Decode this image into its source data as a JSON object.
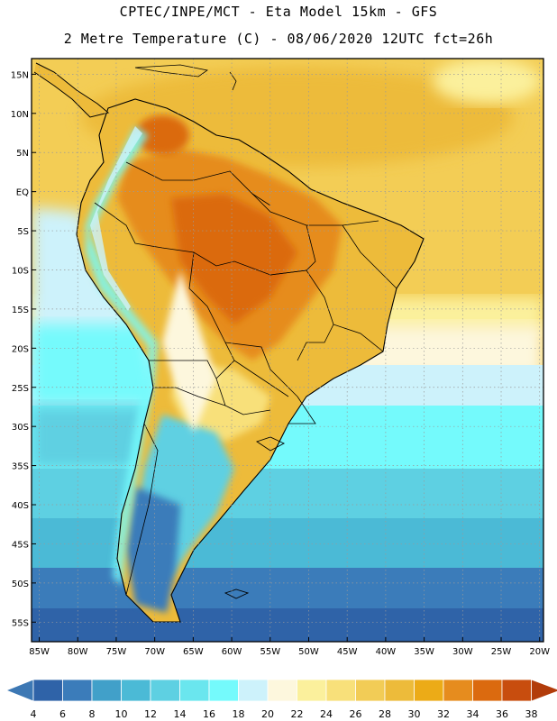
{
  "header": {
    "title_line1": "CPTEC/INPE/MCT -  Eta Model 15km - GFS",
    "title_line2": "2 Metre Temperature (C) - 08/06/2020 12UTC fct=26h"
  },
  "map": {
    "lat_labels": [
      "15N",
      "10N",
      "5N",
      "EQ",
      "5S",
      "10S",
      "15S",
      "20S",
      "25S",
      "30S",
      "35S",
      "40S",
      "45S",
      "50S",
      "55S"
    ],
    "lat_values": [
      15,
      10,
      5,
      0,
      -5,
      -10,
      -15,
      -20,
      -25,
      -30,
      -35,
      -40,
      -45,
      -50,
      -55
    ],
    "lon_labels": [
      "85W",
      "80W",
      "75W",
      "70W",
      "65W",
      "60W",
      "55W",
      "50W",
      "45W",
      "40W",
      "35W",
      "30W",
      "25W",
      "20W"
    ],
    "lon_values": [
      -85,
      -80,
      -75,
      -70,
      -65,
      -60,
      -55,
      -50,
      -45,
      -40,
      -35,
      -30,
      -25,
      -20
    ],
    "lon_range": [
      -86,
      -19.5
    ],
    "lat_range": [
      -57.5,
      17
    ]
  },
  "colorbar": {
    "labels": [
      "4",
      "6",
      "8",
      "10",
      "12",
      "14",
      "16",
      "18",
      "20",
      "22",
      "24",
      "26",
      "28",
      "30",
      "32",
      "34",
      "36",
      "38"
    ],
    "colors": [
      "#2f63a8",
      "#3b7cba",
      "#41a0c9",
      "#4bbad6",
      "#5ed0e2",
      "#6ae6ee",
      "#74fafc",
      "#cdf2fb",
      "#fdf7dd",
      "#fbf09c",
      "#f8e07a",
      "#f2cc56",
      "#edbb3a",
      "#ecab17",
      "#e68c1e",
      "#db6a0f",
      "#c84d0e",
      "#b23c0a"
    ]
  }
}
